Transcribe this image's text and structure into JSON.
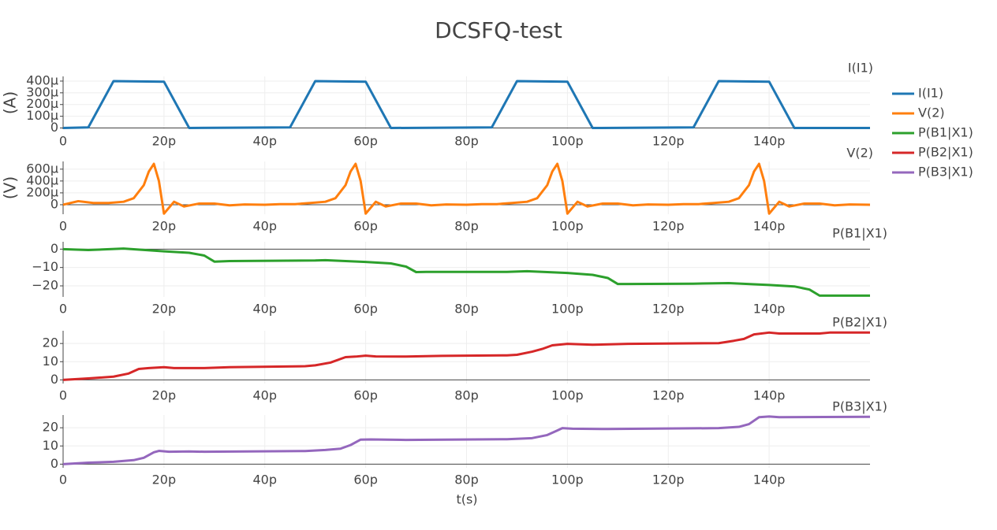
{
  "chart_data": [
    {
      "type": "line",
      "title": "DCSFQ-test",
      "annotation": "I(I1)",
      "ylabel": "(A)",
      "grid": true,
      "x": [
        0,
        5e-12,
        1e-11,
        2e-11,
        2.5e-11,
        4.5e-11,
        5e-11,
        6e-11,
        6.5e-11,
        8.5e-11,
        9e-11,
        1e-10,
        1.05e-10,
        1.25e-10,
        1.3e-10,
        1.4e-10,
        1.45e-10,
        1.6e-10
      ],
      "series": [
        {
          "name": "I(I1)",
          "color": "#1f77b4",
          "values": [
            0,
            5e-06,
            0.0004,
            0.000395,
            0,
            5e-06,
            0.0004,
            0.000395,
            0,
            5e-06,
            0.0004,
            0.000395,
            0,
            5e-06,
            0.0004,
            0.000395,
            0,
            0
          ]
        }
      ],
      "xlim": [
        0,
        1.6e-10
      ],
      "xticks": [
        0,
        {
          "value": 2e-11,
          "label": "20p"
        },
        {
          "value": 4e-11,
          "label": "40p"
        },
        {
          "value": 6e-11,
          "label": "60p"
        },
        {
          "value": 8e-11,
          "label": "80p"
        },
        {
          "value": 1e-10,
          "label": "100p"
        },
        {
          "value": 1.2e-10,
          "label": "120p"
        },
        {
          "value": 1.4e-10,
          "label": "140p"
        }
      ],
      "ylim": [
        -1e-05,
        0.00044
      ],
      "yticks": [
        0,
        {
          "value": 0.0001,
          "label": "100μ"
        },
        {
          "value": 0.0002,
          "label": "200μ"
        },
        {
          "value": 0.0003,
          "label": "300μ"
        },
        {
          "value": 0.0004,
          "label": "400μ"
        }
      ]
    },
    {
      "type": "line",
      "annotation": "V(2)",
      "ylabel": "(V)",
      "grid": true,
      "x": [
        0,
        3e-12,
        6e-12,
        9e-12,
        1.2e-11,
        1.4e-11,
        1.6e-11,
        1.7e-11,
        1.8e-11,
        1.9e-11,
        2e-11,
        2.2e-11,
        2.4e-11,
        2.7e-11,
        3e-11,
        3.3e-11,
        3.6e-11,
        4e-11,
        4.3e-11,
        4.6e-11,
        4.9e-11,
        5.2e-11,
        5.4e-11,
        5.6e-11,
        5.7e-11,
        5.8e-11,
        5.9e-11,
        6e-11,
        6.2e-11,
        6.4e-11,
        6.7e-11,
        7e-11,
        7.3e-11,
        7.6e-11,
        8e-11,
        8.3e-11,
        8.6e-11,
        8.9e-11,
        9.2e-11,
        9.4e-11,
        9.6e-11,
        9.7e-11,
        9.8e-11,
        9.9e-11,
        1e-10,
        1.02e-10,
        1.04e-10,
        1.07e-10,
        1.1e-10,
        1.13e-10,
        1.16e-10,
        1.2e-10,
        1.23e-10,
        1.26e-10,
        1.29e-10,
        1.32e-10,
        1.34e-10,
        1.36e-10,
        1.37e-10,
        1.38e-10,
        1.39e-10,
        1.4e-10,
        1.42e-10,
        1.44e-10,
        1.47e-10,
        1.5e-10,
        1.53e-10,
        1.56e-10,
        1.6e-10
      ],
      "series": [
        {
          "name": "V(2)",
          "color": "#ff7f0e",
          "values": [
            0,
            6e-05,
            3e-05,
            3e-05,
            5e-05,
            0.00011,
            0.00033,
            0.00056,
            0.00069,
            0.0004,
            -0.00015,
            5e-05,
            -3e-05,
            2e-05,
            2e-05,
            -1e-05,
            5e-06,
            0,
            1e-05,
            1e-05,
            3e-05,
            5e-05,
            0.00011,
            0.00033,
            0.00056,
            0.00069,
            0.0004,
            -0.00015,
            5e-05,
            -3e-05,
            2e-05,
            2e-05,
            -1e-05,
            5e-06,
            0,
            1e-05,
            1e-05,
            3e-05,
            5e-05,
            0.00011,
            0.00033,
            0.00056,
            0.00069,
            0.0004,
            -0.00015,
            5e-05,
            -3e-05,
            2e-05,
            2e-05,
            -1e-05,
            5e-06,
            0,
            1e-05,
            1e-05,
            3e-05,
            5e-05,
            0.00011,
            0.00033,
            0.00056,
            0.00069,
            0.0004,
            -0.00015,
            5e-05,
            -3e-05,
            2e-05,
            2e-05,
            -1e-05,
            5e-06,
            0
          ]
        }
      ],
      "xlim": [
        0,
        1.6e-10
      ],
      "xticks": [
        0,
        {
          "value": 2e-11,
          "label": "20p"
        },
        {
          "value": 4e-11,
          "label": "40p"
        },
        {
          "value": 6e-11,
          "label": "60p"
        },
        {
          "value": 8e-11,
          "label": "80p"
        },
        {
          "value": 1e-10,
          "label": "100p"
        },
        {
          "value": 1.2e-10,
          "label": "120p"
        },
        {
          "value": 1.4e-10,
          "label": "140p"
        }
      ],
      "ylim": [
        -0.00016,
        0.00073
      ],
      "yticks": [
        0,
        {
          "value": 0.0002,
          "label": "200μ"
        },
        {
          "value": 0.0004,
          "label": "400μ"
        },
        {
          "value": 0.0006,
          "label": "600μ"
        }
      ]
    },
    {
      "type": "line",
      "annotation": "P(B1|X1)",
      "grid": true,
      "x": [
        0,
        5e-12,
        1.2e-11,
        2e-11,
        2.5e-11,
        2.8e-11,
        3e-11,
        3.3e-11,
        5e-11,
        5.2e-11,
        6e-11,
        6.5e-11,
        6.8e-11,
        7e-11,
        7.2e-11,
        8.8e-11,
        9.2e-11,
        1e-10,
        1.05e-10,
        1.08e-10,
        1.1e-10,
        1.12e-10,
        1.25e-10,
        1.32e-10,
        1.4e-10,
        1.45e-10,
        1.48e-10,
        1.5e-10,
        1.6e-10
      ],
      "series": [
        {
          "name": "P(B1|X1)",
          "color": "#2ca02c",
          "values": [
            0,
            -0.5,
            0.3,
            -1.2,
            -2,
            -3.5,
            -6.8,
            -6.5,
            -6.2,
            -6,
            -7,
            -7.8,
            -9.5,
            -12.5,
            -12.4,
            -12.4,
            -12,
            -13,
            -14,
            -15.7,
            -19,
            -19,
            -18.8,
            -18.5,
            -19.5,
            -20.3,
            -22,
            -25.3,
            -25.3
          ]
        }
      ],
      "xlim": [
        0,
        1.6e-10
      ],
      "xticks": [
        0,
        {
          "value": 2e-11,
          "label": "20p"
        },
        {
          "value": 4e-11,
          "label": "40p"
        },
        {
          "value": 6e-11,
          "label": "60p"
        },
        {
          "value": 8e-11,
          "label": "80p"
        },
        {
          "value": 1e-10,
          "label": "100p"
        },
        {
          "value": 1.2e-10,
          "label": "120p"
        },
        {
          "value": 1.4e-10,
          "label": "140p"
        }
      ],
      "ylim": [
        -26,
        4
      ],
      "yticks": [
        {
          "value": -20,
          "label": "−20"
        },
        {
          "value": -10,
          "label": "−10"
        },
        0
      ]
    },
    {
      "type": "line",
      "annotation": "P(B2|X1)",
      "grid": true,
      "x": [
        0,
        5e-12,
        1e-11,
        1.3e-11,
        1.5e-11,
        1.7e-11,
        2e-11,
        2.2e-11,
        2.8e-11,
        3.3e-11,
        4.8e-11,
        5e-11,
        5.3e-11,
        5.6e-11,
        5.8e-11,
        6e-11,
        6.2e-11,
        6.8e-11,
        7.5e-11,
        8.8e-11,
        9e-11,
        9.3e-11,
        9.5e-11,
        9.7e-11,
        1e-10,
        1.05e-10,
        1.12e-10,
        1.3e-10,
        1.33e-10,
        1.35e-10,
        1.37e-10,
        1.4e-10,
        1.42e-10,
        1.5e-10,
        1.52e-10,
        1.6e-10
      ],
      "series": [
        {
          "name": "P(B2|X1)",
          "color": "#d62728",
          "values": [
            0,
            0.8,
            1.8,
            3.5,
            6,
            6.5,
            7,
            6.5,
            6.5,
            7,
            7.5,
            8,
            9.5,
            12.5,
            12.8,
            13.3,
            12.9,
            12.8,
            13.2,
            13.5,
            13.8,
            15.5,
            17,
            19,
            19.8,
            19.3,
            19.8,
            20.2,
            21.5,
            22.5,
            25,
            26,
            25.5,
            25.5,
            26,
            26
          ]
        }
      ],
      "xlim": [
        0,
        1.6e-10
      ],
      "xticks": [
        0,
        {
          "value": 2e-11,
          "label": "20p"
        },
        {
          "value": 4e-11,
          "label": "40p"
        },
        {
          "value": 6e-11,
          "label": "60p"
        },
        {
          "value": 8e-11,
          "label": "80p"
        },
        {
          "value": 1e-10,
          "label": "100p"
        },
        {
          "value": 1.2e-10,
          "label": "120p"
        },
        {
          "value": 1.4e-10,
          "label": "140p"
        }
      ],
      "ylim": [
        -2,
        27
      ],
      "yticks": [
        0,
        10,
        20
      ]
    },
    {
      "type": "line",
      "annotation": "P(B3|X1)",
      "xlabel": "t(s)",
      "grid": true,
      "x": [
        0,
        5e-12,
        1e-11,
        1.4e-11,
        1.6e-11,
        1.8e-11,
        1.9e-11,
        2.1e-11,
        2.5e-11,
        2.8e-11,
        4.8e-11,
        5.2e-11,
        5.5e-11,
        5.7e-11,
        5.9e-11,
        6.1e-11,
        6.8e-11,
        8.8e-11,
        9.3e-11,
        9.6e-11,
        9.8e-11,
        9.9e-11,
        1.01e-10,
        1.08e-10,
        1.3e-10,
        1.34e-10,
        1.36e-10,
        1.38e-10,
        1.4e-10,
        1.42e-10,
        1.6e-10
      ],
      "series": [
        {
          "name": "P(B3|X1)",
          "color": "#9467bd",
          "values": [
            0,
            0.8,
            1.3,
            2.2,
            3.5,
            6.5,
            7.3,
            6.8,
            7,
            6.8,
            7.2,
            7.8,
            8.5,
            10.5,
            13.5,
            13.6,
            13.3,
            13.7,
            14.3,
            16,
            18.5,
            19.8,
            19.5,
            19.3,
            19.8,
            20.5,
            22,
            25.8,
            26.2,
            25.8,
            26
          ]
        }
      ],
      "xlim": [
        0,
        1.6e-10
      ],
      "xticks": [
        0,
        {
          "value": 2e-11,
          "label": "20p"
        },
        {
          "value": 4e-11,
          "label": "40p"
        },
        {
          "value": 6e-11,
          "label": "60p"
        },
        {
          "value": 8e-11,
          "label": "80p"
        },
        {
          "value": 1e-10,
          "label": "100p"
        },
        {
          "value": 1.2e-10,
          "label": "120p"
        },
        {
          "value": 1.4e-10,
          "label": "140p"
        }
      ],
      "ylim": [
        -2,
        27
      ],
      "yticks": [
        0,
        10,
        20
      ]
    }
  ]
}
